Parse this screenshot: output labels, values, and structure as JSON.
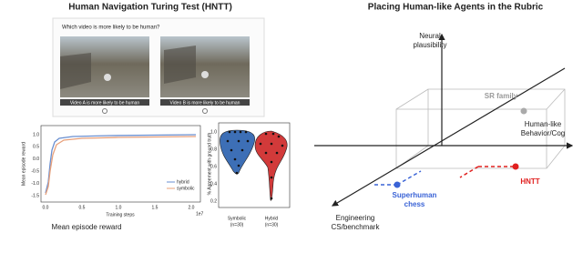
{
  "left": {
    "title": "Human Navigation Turing Test (HNTT)",
    "question": "Which video is more likely to be human?",
    "options": [
      "Video A is more likely to be human",
      "Video B is more likely to be human"
    ],
    "reward_chart": {
      "ylabel": "Mean episode reward",
      "xlabel": "Training steps",
      "yticks": [
        "1.0",
        "0.5",
        "0.0",
        "-0.5",
        "-1.0",
        "-1.5"
      ],
      "xticks": [
        "0.0",
        "0.5",
        "1.0",
        "1.5",
        "2.0"
      ],
      "offset": "1e7",
      "legend": [
        "hybrid",
        "symbolic"
      ],
      "caption": "Mean episode reward"
    },
    "agreement_chart": {
      "ylabel": "% Agreement with ground truth",
      "yticks": [
        "1.0",
        "0.8",
        "0.6",
        "0.4",
        "0.2"
      ],
      "categories": [
        [
          "Symbolic",
          "(n=30)"
        ],
        [
          "Hybrid",
          "(n=30)"
        ]
      ]
    }
  },
  "right": {
    "title": "Placing Human-like Agents in the Rubric",
    "axes": {
      "up": [
        "Neural",
        "plausibility"
      ],
      "right": [
        "Human-like",
        "Behavior/Cog"
      ],
      "left": [
        "Engineering",
        "CS/benchmark"
      ]
    },
    "points": {
      "sr": "SR family",
      "hntt": "HNTT",
      "chess": [
        "Superhuman",
        "chess"
      ]
    }
  }
}
